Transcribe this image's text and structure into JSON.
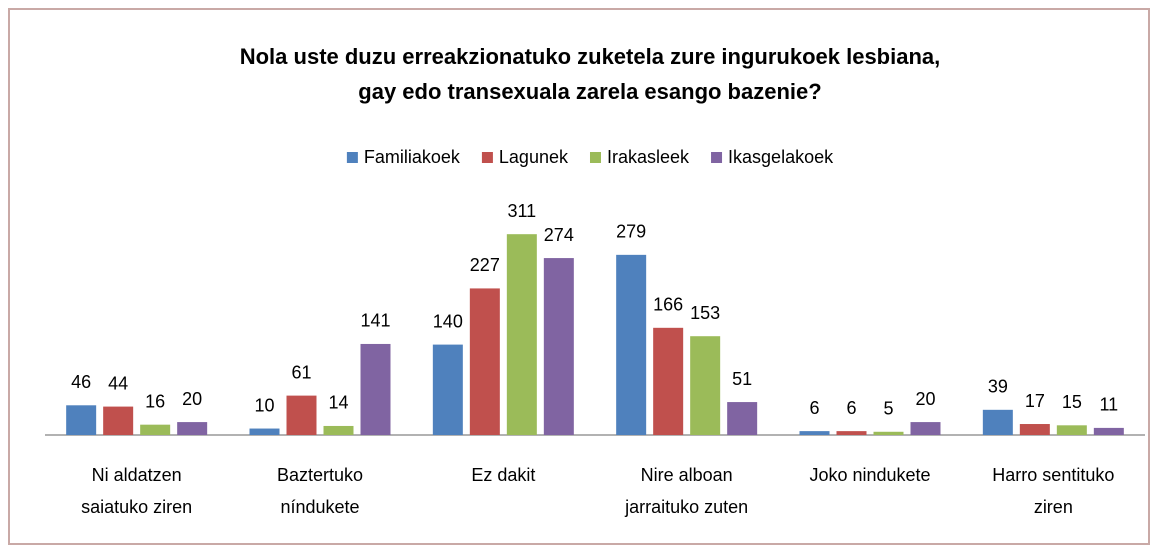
{
  "chart_data": {
    "type": "bar",
    "title": [
      "Nola uste duzu erreakzionatuko zuketela zure ingurukoek lesbiana,",
      "gay edo transexuala zarela esango bazenie?"
    ],
    "categories": [
      [
        "Ni aldatzen",
        "saiatuko ziren"
      ],
      [
        "Baztertuko",
        "níndukete"
      ],
      [
        "Ez dakit"
      ],
      [
        "Nire alboan",
        "jarraituko zuten"
      ],
      [
        "Joko nindukete"
      ],
      [
        "Harro sentituko",
        "ziren"
      ]
    ],
    "series": [
      {
        "name": "Familiakoek",
        "color": "#4f81bd",
        "values": [
          46,
          10,
          140,
          279,
          6,
          39
        ]
      },
      {
        "name": "Lagunek",
        "color": "#c0504d",
        "values": [
          44,
          61,
          227,
          166,
          6,
          17
        ]
      },
      {
        "name": "Irakasleek",
        "color": "#9bbb59",
        "values": [
          16,
          14,
          311,
          153,
          5,
          15
        ]
      },
      {
        "name": "Ikasgelakoek",
        "color": "#8064a2",
        "values": [
          20,
          141,
          274,
          51,
          20,
          11
        ]
      }
    ],
    "ylim": [
      0,
      350
    ],
    "legend": "top"
  }
}
